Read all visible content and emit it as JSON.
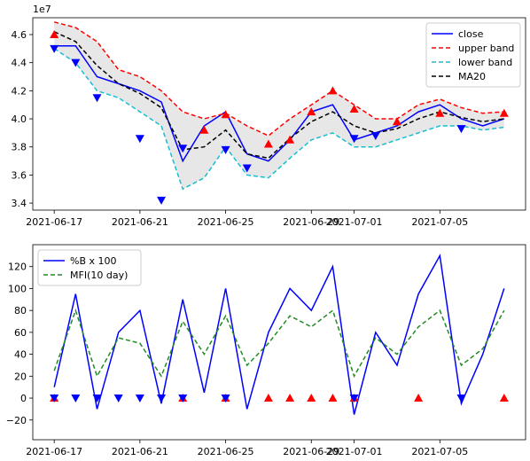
{
  "chart_data": [
    {
      "type": "line",
      "offset_text": "1e7",
      "x_ticks": [
        "2021-06-17",
        "2021-06-21",
        "2021-06-25",
        "2021-06-29",
        "2021-07-01",
        "2021-07-05"
      ],
      "xlim": [
        "2021-06-16",
        "2021-07-09"
      ],
      "y_ticks": [
        "3.4",
        "3.6",
        "3.8",
        "4.0",
        "4.2",
        "4.4",
        "4.6"
      ],
      "ylim": [
        3.35,
        4.72
      ],
      "legend_position": "top-right",
      "x": [
        "2021-06-17",
        "2021-06-18",
        "2021-06-19",
        "2021-06-20",
        "2021-06-21",
        "2021-06-22",
        "2021-06-23",
        "2021-06-24",
        "2021-06-25",
        "2021-06-26",
        "2021-06-27",
        "2021-06-28",
        "2021-06-29",
        "2021-06-30",
        "2021-07-01",
        "2021-07-02",
        "2021-07-03",
        "2021-07-04",
        "2021-07-05",
        "2021-07-06",
        "2021-07-07",
        "2021-07-08"
      ],
      "series": [
        {
          "name": "close",
          "color": "#0000ff",
          "style": "solid",
          "values": [
            4.52,
            4.52,
            4.3,
            4.25,
            4.2,
            4.12,
            3.7,
            3.95,
            4.05,
            3.75,
            3.7,
            3.85,
            4.05,
            4.1,
            3.85,
            3.9,
            3.95,
            4.05,
            4.1,
            4.0,
            3.95,
            4.0
          ]
        },
        {
          "name": "upper band",
          "color": "#ff0000",
          "style": "dashed",
          "values": [
            4.69,
            4.65,
            4.55,
            4.35,
            4.3,
            4.2,
            4.05,
            4.0,
            4.04,
            3.95,
            3.88,
            4.0,
            4.1,
            4.2,
            4.1,
            4.0,
            4.0,
            4.1,
            4.14,
            4.08,
            4.04,
            4.05
          ]
        },
        {
          "name": "lower band",
          "color": "#17becf",
          "style": "dashed",
          "values": [
            4.5,
            4.4,
            4.2,
            4.15,
            4.05,
            3.95,
            3.5,
            3.58,
            3.8,
            3.6,
            3.58,
            3.72,
            3.85,
            3.9,
            3.8,
            3.8,
            3.85,
            3.9,
            3.95,
            3.95,
            3.92,
            3.94
          ]
        },
        {
          "name": "MA20",
          "color": "#000000",
          "style": "dashed",
          "values": [
            4.62,
            4.55,
            4.38,
            4.25,
            4.18,
            4.08,
            3.78,
            3.8,
            3.92,
            3.75,
            3.72,
            3.86,
            3.98,
            4.05,
            3.95,
            3.9,
            3.93,
            4.0,
            4.05,
            4.01,
            3.98,
            4.0
          ]
        }
      ],
      "sell_markers": [
        {
          "x": "2021-06-17",
          "y": 4.6
        },
        {
          "x": "2021-06-24",
          "y": 3.92
        },
        {
          "x": "2021-06-25",
          "y": 4.03
        },
        {
          "x": "2021-06-27",
          "y": 3.82
        },
        {
          "x": "2021-06-28",
          "y": 3.85
        },
        {
          "x": "2021-06-29",
          "y": 4.05
        },
        {
          "x": "2021-06-30",
          "y": 4.2
        },
        {
          "x": "2021-07-01",
          "y": 4.07
        },
        {
          "x": "2021-07-03",
          "y": 3.98
        },
        {
          "x": "2021-07-05",
          "y": 4.04
        },
        {
          "x": "2021-07-08",
          "y": 4.04
        }
      ],
      "buy_markers": [
        {
          "x": "2021-06-17",
          "y": 4.5
        },
        {
          "x": "2021-06-18",
          "y": 4.4
        },
        {
          "x": "2021-06-19",
          "y": 4.15
        },
        {
          "x": "2021-06-21",
          "y": 3.86
        },
        {
          "x": "2021-06-22",
          "y": 3.42
        },
        {
          "x": "2021-06-23",
          "y": 3.79
        },
        {
          "x": "2021-06-25",
          "y": 3.78
        },
        {
          "x": "2021-06-26",
          "y": 3.65
        },
        {
          "x": "2021-07-01",
          "y": 3.86
        },
        {
          "x": "2021-07-02",
          "y": 3.88
        },
        {
          "x": "2021-07-06",
          "y": 3.93
        }
      ]
    },
    {
      "type": "line",
      "x_ticks": [
        "2021-06-17",
        "2021-06-21",
        "2021-06-25",
        "2021-06-29",
        "2021-07-01",
        "2021-07-05"
      ],
      "xlim": [
        "2021-06-16",
        "2021-07-09"
      ],
      "y_ticks": [
        "−20",
        "0",
        "20",
        "40",
        "60",
        "80",
        "100",
        "120"
      ],
      "ylim": [
        -38,
        140
      ],
      "legend_position": "top-left",
      "x": [
        "2021-06-17",
        "2021-06-18",
        "2021-06-19",
        "2021-06-20",
        "2021-06-21",
        "2021-06-22",
        "2021-06-23",
        "2021-06-24",
        "2021-06-25",
        "2021-06-26",
        "2021-06-27",
        "2021-06-28",
        "2021-06-29",
        "2021-06-30",
        "2021-07-01",
        "2021-07-02",
        "2021-07-03",
        "2021-07-04",
        "2021-07-05",
        "2021-07-06",
        "2021-07-07",
        "2021-07-08"
      ],
      "series": [
        {
          "name": "%B x 100",
          "color": "#0000ff",
          "style": "solid",
          "values": [
            10,
            95,
            -10,
            60,
            80,
            -5,
            90,
            5,
            100,
            -10,
            60,
            100,
            80,
            120,
            -15,
            60,
            30,
            95,
            130,
            -5,
            40,
            100
          ]
        },
        {
          "name": "MFI(10 day)",
          "color": "#228b22",
          "style": "dashed",
          "values": [
            25,
            80,
            20,
            55,
            50,
            20,
            70,
            40,
            75,
            30,
            50,
            75,
            65,
            80,
            20,
            55,
            40,
            65,
            80,
            30,
            45,
            80
          ]
        }
      ],
      "sell_x": [
        "2021-06-17",
        "2021-06-23",
        "2021-06-25",
        "2021-06-27",
        "2021-06-28",
        "2021-06-29",
        "2021-06-30",
        "2021-07-01",
        "2021-07-04",
        "2021-07-08"
      ],
      "buy_x": [
        "2021-06-17",
        "2021-06-18",
        "2021-06-19",
        "2021-06-20",
        "2021-06-21",
        "2021-06-22",
        "2021-06-23",
        "2021-06-25",
        "2021-07-01",
        "2021-07-06"
      ]
    }
  ]
}
